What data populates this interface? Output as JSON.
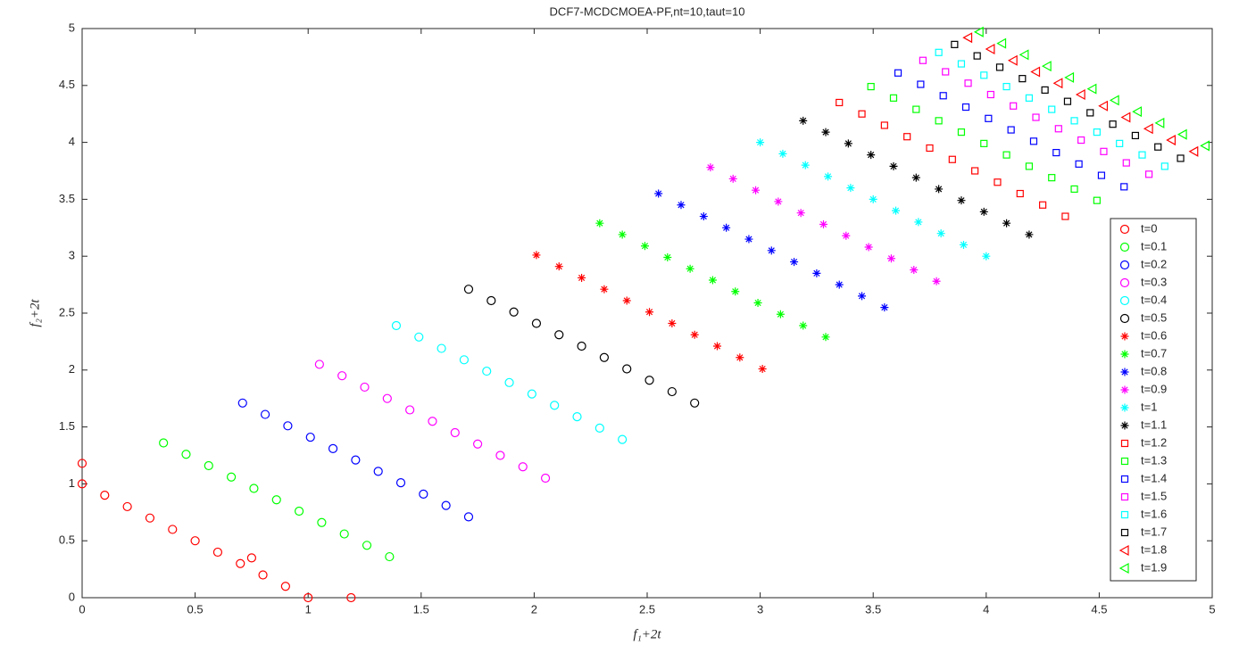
{
  "chart_data": {
    "type": "scatter",
    "title": "DCF7-MCDCMOEA-PF,nt=10,taut=10",
    "x_label": "f₁+2t",
    "y_label": "f₂+2t",
    "xlim": [
      0,
      5
    ],
    "ylim": [
      0,
      5
    ],
    "xticks": [
      0,
      0.5,
      1,
      1.5,
      2,
      2.5,
      3,
      3.5,
      4,
      4.5,
      5
    ],
    "yticks": [
      0,
      0.5,
      1,
      1.5,
      2,
      2.5,
      3,
      3.5,
      4,
      4.5,
      5
    ],
    "legend": "right",
    "series": [
      {
        "name": "t=0",
        "color": "#ff0000",
        "marker": "circle",
        "x": [
          0,
          0.1,
          0.2,
          0.3,
          0.4,
          0.5,
          0.6,
          0.7,
          0.8,
          0.9,
          1,
          0,
          1.19,
          0.75
        ],
        "y": [
          1,
          0.9,
          0.8,
          0.7,
          0.6,
          0.5,
          0.4,
          0.3,
          0.2,
          0.1,
          0,
          1.18,
          0,
          0.35
        ]
      },
      {
        "name": "t=0.1",
        "color": "#00ff00",
        "marker": "circle",
        "x": [
          0.36,
          0.46,
          0.56,
          0.66,
          0.76,
          0.86,
          0.96,
          1.06,
          1.16,
          1.26,
          1.36
        ],
        "y": [
          1.36,
          1.26,
          1.16,
          1.06,
          0.96,
          0.86,
          0.76,
          0.66,
          0.56,
          0.46,
          0.36
        ]
      },
      {
        "name": "t=0.2",
        "color": "#0000ff",
        "marker": "circle",
        "x": [
          0.71,
          0.81,
          0.91,
          1.01,
          1.11,
          1.21,
          1.31,
          1.41,
          1.51,
          1.61,
          1.71
        ],
        "y": [
          1.71,
          1.61,
          1.51,
          1.41,
          1.31,
          1.21,
          1.11,
          1.01,
          0.91,
          0.81,
          0.71
        ]
      },
      {
        "name": "t=0.3",
        "color": "#ff00ff",
        "marker": "circle",
        "x": [
          1.05,
          1.15,
          1.25,
          1.35,
          1.45,
          1.55,
          1.65,
          1.75,
          1.85,
          1.95,
          2.05
        ],
        "y": [
          2.05,
          1.95,
          1.85,
          1.75,
          1.65,
          1.55,
          1.45,
          1.35,
          1.25,
          1.15,
          1.05
        ]
      },
      {
        "name": "t=0.4",
        "color": "#00ffff",
        "marker": "circle",
        "x": [
          1.39,
          1.49,
          1.59,
          1.69,
          1.79,
          1.89,
          1.99,
          2.09,
          2.19,
          2.29,
          2.39
        ],
        "y": [
          2.39,
          2.29,
          2.19,
          2.09,
          1.99,
          1.89,
          1.79,
          1.69,
          1.59,
          1.49,
          1.39
        ]
      },
      {
        "name": "t=0.5",
        "color": "#000000",
        "marker": "circle",
        "x": [
          1.71,
          1.81,
          1.91,
          2.01,
          2.11,
          2.21,
          2.31,
          2.41,
          2.51,
          2.61,
          2.71
        ],
        "y": [
          2.71,
          2.61,
          2.51,
          2.41,
          2.31,
          2.21,
          2.11,
          2.01,
          1.91,
          1.81,
          1.71
        ]
      },
      {
        "name": "t=0.6",
        "color": "#ff0000",
        "marker": "star",
        "x": [
          2.01,
          2.11,
          2.21,
          2.31,
          2.41,
          2.51,
          2.61,
          2.71,
          2.81,
          2.91,
          3.01
        ],
        "y": [
          3.01,
          2.91,
          2.81,
          2.71,
          2.61,
          2.51,
          2.41,
          2.31,
          2.21,
          2.11,
          2.01
        ]
      },
      {
        "name": "t=0.7",
        "color": "#00ff00",
        "marker": "star",
        "x": [
          2.29,
          2.39,
          2.49,
          2.59,
          2.69,
          2.79,
          2.89,
          2.99,
          3.09,
          3.19,
          3.29
        ],
        "y": [
          3.29,
          3.19,
          3.09,
          2.99,
          2.89,
          2.79,
          2.69,
          2.59,
          2.49,
          2.39,
          2.29
        ]
      },
      {
        "name": "t=0.8",
        "color": "#0000ff",
        "marker": "star",
        "x": [
          2.55,
          2.65,
          2.75,
          2.85,
          2.95,
          3.05,
          3.15,
          3.25,
          3.35,
          3.45,
          3.55
        ],
        "y": [
          3.55,
          3.45,
          3.35,
          3.25,
          3.15,
          3.05,
          2.95,
          2.85,
          2.75,
          2.65,
          2.55
        ]
      },
      {
        "name": "t=0.9",
        "color": "#ff00ff",
        "marker": "star",
        "x": [
          2.78,
          2.88,
          2.98,
          3.08,
          3.18,
          3.28,
          3.38,
          3.48,
          3.58,
          3.68,
          3.78
        ],
        "y": [
          3.78,
          3.68,
          3.58,
          3.48,
          3.38,
          3.28,
          3.18,
          3.08,
          2.98,
          2.88,
          2.78
        ]
      },
      {
        "name": "t=1",
        "color": "#00ffff",
        "marker": "star",
        "x": [
          3,
          3.1,
          3.2,
          3.3,
          3.4,
          3.5,
          3.6,
          3.7,
          3.8,
          3.9,
          4
        ],
        "y": [
          4,
          3.9,
          3.8,
          3.7,
          3.6,
          3.5,
          3.4,
          3.3,
          3.2,
          3.1,
          3
        ]
      },
      {
        "name": "t=1.1",
        "color": "#000000",
        "marker": "star",
        "x": [
          3.19,
          3.29,
          3.39,
          3.49,
          3.59,
          3.69,
          3.79,
          3.89,
          3.99,
          4.09,
          4.19
        ],
        "y": [
          4.19,
          4.09,
          3.99,
          3.89,
          3.79,
          3.69,
          3.59,
          3.49,
          3.39,
          3.29,
          3.19
        ]
      },
      {
        "name": "t=1.2",
        "color": "#ff0000",
        "marker": "square",
        "x": [
          3.35,
          3.45,
          3.55,
          3.65,
          3.75,
          3.85,
          3.95,
          4.05,
          4.15,
          4.25,
          4.35
        ],
        "y": [
          4.35,
          4.25,
          4.15,
          4.05,
          3.95,
          3.85,
          3.75,
          3.65,
          3.55,
          3.45,
          3.35
        ]
      },
      {
        "name": "t=1.3",
        "color": "#00ff00",
        "marker": "square",
        "x": [
          3.49,
          3.59,
          3.69,
          3.79,
          3.89,
          3.99,
          4.09,
          4.19,
          4.29,
          4.39,
          4.49
        ],
        "y": [
          4.49,
          4.39,
          4.29,
          4.19,
          4.09,
          3.99,
          3.89,
          3.79,
          3.69,
          3.59,
          3.49
        ]
      },
      {
        "name": "t=1.4",
        "color": "#0000ff",
        "marker": "square",
        "x": [
          3.61,
          3.71,
          3.81,
          3.91,
          4.01,
          4.11,
          4.21,
          4.31,
          4.41,
          4.51,
          4.61
        ],
        "y": [
          4.61,
          4.51,
          4.41,
          4.31,
          4.21,
          4.11,
          4.01,
          3.91,
          3.81,
          3.71,
          3.61
        ]
      },
      {
        "name": "t=1.5",
        "color": "#ff00ff",
        "marker": "square",
        "x": [
          3.72,
          3.82,
          3.92,
          4.02,
          4.12,
          4.22,
          4.32,
          4.42,
          4.52,
          4.62,
          4.72
        ],
        "y": [
          4.72,
          4.62,
          4.52,
          4.42,
          4.32,
          4.22,
          4.12,
          4.02,
          3.92,
          3.82,
          3.72
        ]
      },
      {
        "name": "t=1.6",
        "color": "#00ffff",
        "marker": "square",
        "x": [
          3.79,
          3.89,
          3.99,
          4.09,
          4.19,
          4.29,
          4.39,
          4.49,
          4.59,
          4.69,
          4.79
        ],
        "y": [
          4.79,
          4.69,
          4.59,
          4.49,
          4.39,
          4.29,
          4.19,
          4.09,
          3.99,
          3.89,
          3.79
        ]
      },
      {
        "name": "t=1.7",
        "color": "#000000",
        "marker": "square",
        "x": [
          3.86,
          3.96,
          4.06,
          4.16,
          4.26,
          4.36,
          4.46,
          4.56,
          4.66,
          4.76,
          4.86
        ],
        "y": [
          4.86,
          4.76,
          4.66,
          4.56,
          4.46,
          4.36,
          4.26,
          4.16,
          4.06,
          3.96,
          3.86
        ]
      },
      {
        "name": "t=1.8",
        "color": "#ff0000",
        "marker": "triangle",
        "x": [
          3.92,
          4.02,
          4.12,
          4.22,
          4.32,
          4.42,
          4.52,
          4.62,
          4.72,
          4.82,
          4.92
        ],
        "y": [
          4.92,
          4.82,
          4.72,
          4.62,
          4.52,
          4.42,
          4.32,
          4.22,
          4.12,
          4.02,
          3.92
        ]
      },
      {
        "name": "t=1.9",
        "color": "#00ff00",
        "marker": "triangle",
        "x": [
          3.97,
          4.07,
          4.17,
          4.27,
          4.37,
          4.47,
          4.57,
          4.67,
          4.77,
          4.87,
          4.97
        ],
        "y": [
          4.97,
          4.87,
          4.77,
          4.67,
          4.57,
          4.47,
          4.37,
          4.27,
          4.17,
          4.07,
          3.97
        ]
      }
    ]
  }
}
